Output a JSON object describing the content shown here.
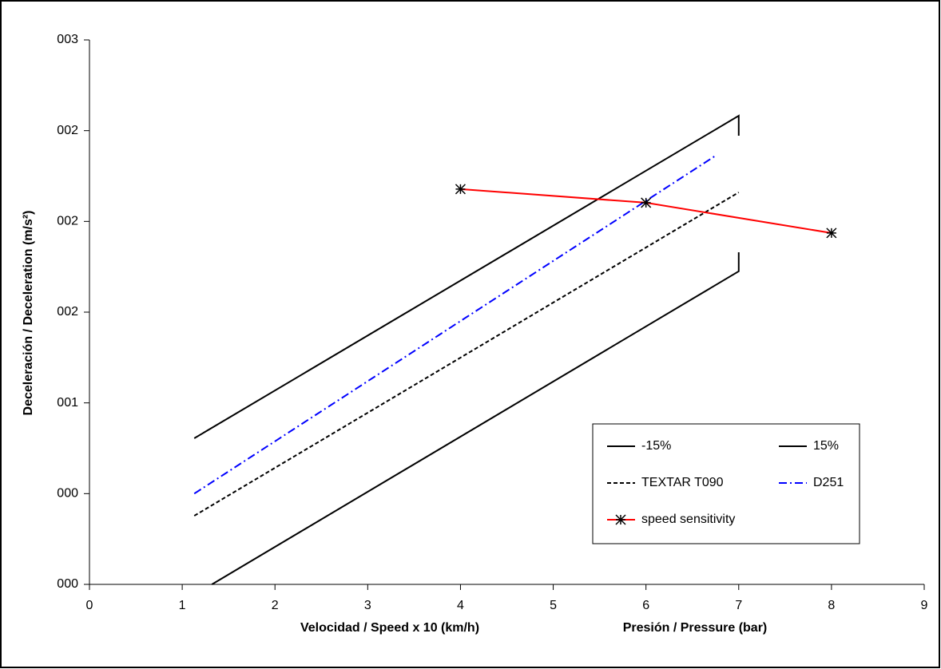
{
  "chart_data": {
    "type": "line",
    "xlabel": "Velocidad / Speed  x 10 (km/h)",
    "xlabel2": "Presión / Pressure (bar)",
    "ylabel": "Deceleración / Deceleration (m/s²)",
    "xlim": [
      0,
      9
    ],
    "xticks": [
      0,
      1,
      2,
      3,
      4,
      5,
      6,
      7,
      8,
      9
    ],
    "ylim": [
      0,
      3
    ],
    "yticks": [
      {
        "value": 0,
        "label": "000"
      },
      {
        "value": 0.5,
        "label": "000"
      },
      {
        "value": 1,
        "label": "001"
      },
      {
        "value": 1.5,
        "label": "002"
      },
      {
        "value": 2,
        "label": "002"
      },
      {
        "value": 2.5,
        "label": "002"
      },
      {
        "value": 3,
        "label": "003"
      }
    ],
    "grid": false,
    "legend": "lower-right",
    "series": [
      {
        "name": "-15%",
        "color": "#000000",
        "style": "solid",
        "x": [
          1.32,
          7,
          7
        ],
        "values": [
          0,
          1.725,
          1.83
        ]
      },
      {
        "name": "15%",
        "color": "#000000",
        "style": "solid",
        "x": [
          1.13,
          7,
          7
        ],
        "values": [
          0.805,
          2.582,
          2.472
        ]
      },
      {
        "name": "TEXTAR T090",
        "color": "#000000",
        "style": "dashed",
        "x": [
          1.13,
          7
        ],
        "values": [
          0.378,
          2.16
        ]
      },
      {
        "name": "D251",
        "color": "#0000ff",
        "style": "dashdot",
        "x": [
          1.13,
          6.75
        ],
        "values": [
          0.5,
          2.362
        ]
      },
      {
        "name": "speed sensitivity",
        "color": "#ff0000",
        "style": "solid",
        "marker": "asterisk",
        "x": [
          4,
          6,
          8
        ],
        "values": [
          2.178,
          2.103,
          1.936
        ]
      }
    ]
  }
}
